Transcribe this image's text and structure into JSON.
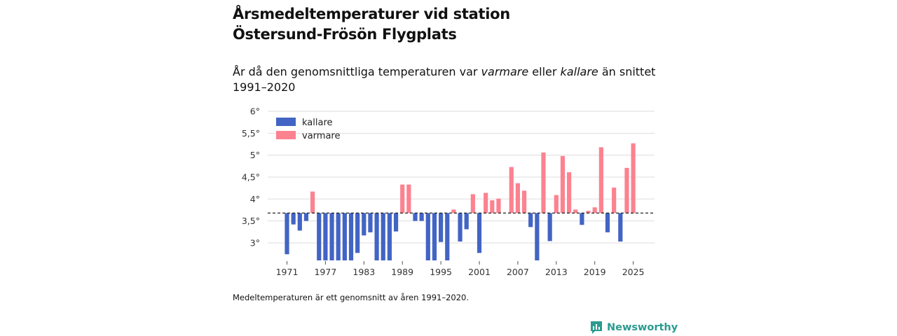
{
  "header": {
    "title_line1": "Årsmedeltemperaturer vid station",
    "title_line2": "Östersund-Frösön Flygplats",
    "subtitle_part1": "År då den genomsnittliga temperaturen var ",
    "subtitle_em1": "varmare",
    "subtitle_part2": " eller ",
    "subtitle_em2": "kallare",
    "subtitle_part3": " än snittet 1991–2020"
  },
  "footer": {
    "note": "Medeltemperaturen är ett genomsnitt av åren 1991–2020.",
    "brand": "Newsworthy"
  },
  "colors": {
    "kallare": "#4264c4",
    "varmare": "#fc8290",
    "grid": "#dddddd",
    "brand": "#2a9b8f"
  },
  "chart_data": {
    "type": "bar",
    "title": "Årsmedeltemperaturer vid station Östersund-Frösön Flygplats",
    "baseline": 3.68,
    "baseline_style": "dashed",
    "ylim": [
      2.6,
      6.0
    ],
    "yticks": [
      3,
      3.5,
      4,
      4.5,
      5,
      5.5,
      6
    ],
    "ytick_labels": [
      "3°",
      "3,5°",
      "4°",
      "4,5°",
      "5°",
      "5,5°",
      "6°"
    ],
    "xticks": [
      1971,
      1977,
      1983,
      1989,
      1995,
      2001,
      2007,
      2013,
      2019,
      2025
    ],
    "legend": [
      {
        "key": "kallare",
        "label": "kallare"
      },
      {
        "key": "varmare",
        "label": "varmare"
      }
    ],
    "legend_position": "top-left",
    "years": [
      1971,
      1972,
      1973,
      1974,
      1975,
      1976,
      1977,
      1978,
      1979,
      1980,
      1981,
      1982,
      1983,
      1984,
      1985,
      1986,
      1987,
      1988,
      1989,
      1990,
      1991,
      1992,
      1993,
      1994,
      1995,
      1996,
      1997,
      1998,
      1999,
      2000,
      2001,
      2002,
      2003,
      2004,
      2005,
      2006,
      2007,
      2008,
      2009,
      2010,
      2011,
      2012,
      2013,
      2014,
      2015,
      2016,
      2017,
      2018,
      2019,
      2020,
      2021,
      2022,
      2023,
      2024,
      2025
    ],
    "values": [
      2.74,
      3.42,
      3.28,
      3.5,
      4.17,
      2.6,
      2.6,
      2.6,
      2.6,
      2.6,
      2.6,
      2.77,
      3.17,
      3.24,
      2.6,
      2.6,
      2.6,
      3.26,
      4.33,
      4.33,
      3.5,
      3.5,
      2.6,
      2.6,
      3.02,
      2.6,
      3.76,
      3.03,
      3.31,
      4.11,
      2.77,
      4.14,
      3.97,
      4.01,
      null,
      4.73,
      4.36,
      4.19,
      3.36,
      2.6,
      5.06,
      3.04,
      4.09,
      4.98,
      4.61,
      3.76,
      3.41,
      3.73,
      3.81,
      5.18,
      3.24,
      4.26,
      3.03,
      4.71,
      5.27
    ]
  }
}
